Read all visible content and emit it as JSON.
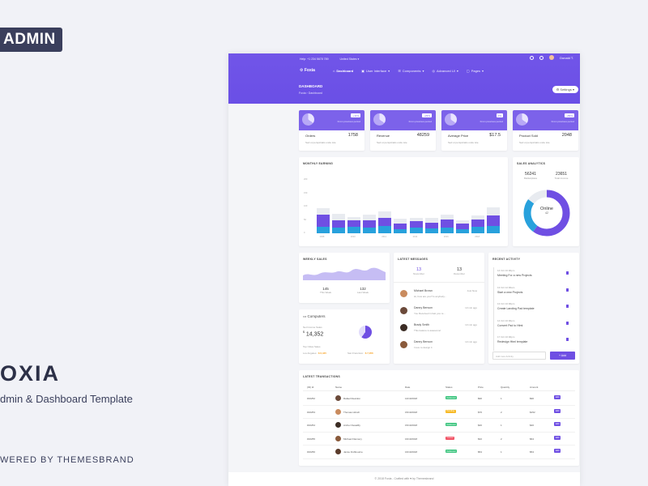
{
  "promo": {
    "badge": "ADMIN",
    "name": "OXIA",
    "subtitle": "dmin & Dashboard Template",
    "powered": "WERED BY THEMESBRAND"
  },
  "topbar": {
    "phone": "Help: +1 234 5678 789",
    "country": "United States",
    "user": "Donald T."
  },
  "nav": {
    "logo": "Foxia",
    "items": [
      {
        "label": "Dashboard",
        "active": true
      },
      {
        "label": "User Interface",
        "active": false
      },
      {
        "label": "Components",
        "active": false
      },
      {
        "label": "Advanced UI",
        "active": false
      },
      {
        "label": "Pages",
        "active": false
      }
    ]
  },
  "page": {
    "title": "DASHBOARD",
    "breadcrumb_root": "Foxia",
    "breadcrumb_current": "Dashboard",
    "settings_label": "Settings"
  },
  "stats": [
    {
      "label": "Orders",
      "value": "1758",
      "badge": "+11%",
      "badge_text": "From previous period",
      "desc": "Sed ut perspiciatis unde iste"
    },
    {
      "label": "Revenue",
      "value": "48259",
      "badge": "+29%",
      "badge_text": "From previous period",
      "desc": "Sed ut perspiciatis unde iste"
    },
    {
      "label": "Average Price",
      "value": "$17.5",
      "badge": "0%",
      "badge_text": "From previous period",
      "desc": "Sed ut perspiciatis unde iste"
    },
    {
      "label": "Product Sold",
      "value": "2048",
      "badge": "+89%",
      "badge_text": "From previous period",
      "desc": "Sed ut perspiciatis unde iste"
    }
  ],
  "earnings": {
    "title": "MONTHLY EARNING",
    "chart_data": {
      "type": "bar",
      "categories": [
        "2008",
        "2009",
        "2010",
        "2011",
        "2012",
        "2013",
        "2014",
        "2015",
        "2016",
        "2017",
        "2018",
        "2019"
      ],
      "tick_labels": [
        "2008",
        "2010",
        "2012",
        "2014",
        "2016",
        "2018"
      ],
      "ytick_labels": [
        "0",
        "50",
        "100",
        "150",
        "200"
      ],
      "series": [
        {
          "color": "#28a1dc",
          "values": [
            25,
            20,
            23,
            20,
            28,
            15,
            20,
            18,
            21,
            15,
            23,
            28
          ]
        },
        {
          "color": "#6f4fe3",
          "values": [
            45,
            28,
            25,
            30,
            30,
            20,
            25,
            20,
            30,
            20,
            30,
            38
          ]
        },
        {
          "color": "#e8ebf0",
          "values": [
            25,
            25,
            12,
            20,
            25,
            20,
            12,
            20,
            18,
            15,
            15,
            30
          ]
        }
      ],
      "ylim": [
        0,
        200
      ]
    }
  },
  "sales": {
    "title": "SALES ANALYTICS",
    "left_value": "56241",
    "left_label": "Marketplace",
    "right_value": "23651",
    "right_label": "Total income",
    "donut_label": "Online",
    "donut_value": "42",
    "chart_data": {
      "type": "pie",
      "categories": [
        "Online",
        "Other",
        "Rest"
      ],
      "values": [
        60,
        25,
        15
      ],
      "colors": [
        "#6f4fe3",
        "#28a1dc",
        "#e8ebf0"
      ]
    }
  },
  "weekly": {
    "title": "WEEKLY SALES",
    "left_value": "145",
    "left_label": "This Week",
    "right_value": "132",
    "right_label": "Last Week"
  },
  "computers": {
    "title": "Computers",
    "revenue_label": "Net Income Sales",
    "revenue_value": "14,352",
    "currency": "$",
    "top_label": "Top Cities Sales",
    "left_label": "Los Angeles",
    "left_value": "$ 6,435",
    "right_label": "San Francisco",
    "right_value": "$ 7,056"
  },
  "messages": {
    "title": "LATEST MESSAGES",
    "tab1_value": "13",
    "tab1_label": "November",
    "tab2_value": "13",
    "tab2_label": "December",
    "items": [
      {
        "name": "Michael Brown",
        "time": "Just Now",
        "text": "Hi, how are you? Is anybody..."
      },
      {
        "name": "Danny Benson",
        "time": "13 min ago",
        "text": "You Received in fast you re..."
      },
      {
        "name": "Brady Smith",
        "time": "13 min ago",
        "text": "This feature is awesome!"
      },
      {
        "name": "Danny Benson",
        "time": "13 min ago",
        "text": "I love to design it"
      }
    ]
  },
  "activity": {
    "title": "RECENT ACTIVITY",
    "items": [
      {
        "date": "14 Oct 10:00pm",
        "text": "Meeting For a new Projects"
      },
      {
        "date": "13 Oct 12:00am",
        "text": "Start a new Projects"
      },
      {
        "date": "13 Oct 10:00pm",
        "text": "Create Landing Pad template"
      },
      {
        "date": "14 Oct 10:00pm",
        "text": "Convert Psd to Html"
      },
      {
        "date": "17 Oct 10:00pm",
        "text": "Redesign Html template"
      }
    ],
    "input_placeholder": "Add new Activity",
    "add_label": "+ Add"
  },
  "transactions": {
    "title": "LATEST TRANSACTIONS",
    "headers": [
      "(ID) Id",
      "Name",
      "Date",
      "Status",
      "Price",
      "Quantity",
      "Amount",
      ""
    ],
    "rows": [
      {
        "id": "#16252",
        "name": "Rafael Reardon",
        "date": "14/10/2018",
        "status": "Delivered",
        "status_color": "#3ac47d",
        "price": "$90",
        "qty": "1",
        "amount": "$90",
        "action": "Edit"
      },
      {
        "id": "#16253",
        "name": "Thomas Hirsch",
        "date": "15/10/2018",
        "status": "Pending",
        "status_color": "#f7b924",
        "price": "$76",
        "qty": "2",
        "amount": "$152",
        "action": "Edit"
      },
      {
        "id": "#16254",
        "name": "Archer Desaillly",
        "date": "15/10/2018",
        "status": "Delivered",
        "status_color": "#3ac47d",
        "price": "$40",
        "qty": "1",
        "amount": "$40",
        "action": "Edit"
      },
      {
        "id": "#16255",
        "name": "Michael Flannery",
        "date": "16/10/2018",
        "status": "Cancel",
        "status_color": "#f14e61",
        "price": "$32",
        "qty": "2",
        "amount": "$64",
        "action": "Edit"
      },
      {
        "id": "#16256",
        "name": "Jamie Fishbourne",
        "date": "16/10/2018",
        "status": "Delivered",
        "status_color": "#3ac47d",
        "price": "$54",
        "qty": "1",
        "amount": "$54",
        "action": "Edit"
      }
    ]
  },
  "footer": {
    "text": "© 2018 Foxia - Crafted with ♥ by Themesbrand"
  }
}
